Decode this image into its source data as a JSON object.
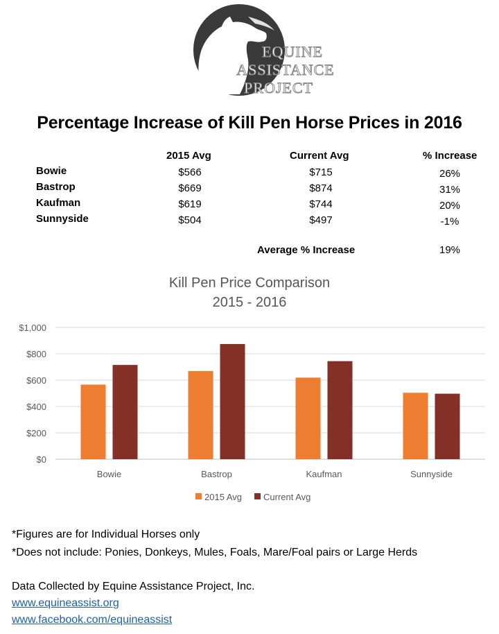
{
  "logo": {
    "text_lines": [
      "EQUINE",
      "ASSISTANCE",
      "PROJECT"
    ]
  },
  "title": "Percentage Increase of Kill Pen Horse Prices in 2016",
  "table": {
    "headers": [
      "2015 Avg",
      "Current Avg",
      "% Increase"
    ],
    "rows": [
      {
        "location": "Bowie",
        "avg2015": "$566",
        "current": "$715",
        "increase": "26%"
      },
      {
        "location": "Bastrop",
        "avg2015": "$669",
        "current": "$874",
        "increase": "31%"
      },
      {
        "location": "Kaufman",
        "avg2015": "$619",
        "current": "$744",
        "increase": "20%"
      },
      {
        "location": "Sunnyside",
        "avg2015": "$504",
        "current": "$497",
        "increase": "-1%"
      }
    ],
    "average_label": "Average % Increase",
    "average_value": "19%"
  },
  "chart_data": {
    "type": "bar",
    "title": "Kill Pen Price Comparison",
    "subtitle": "2015 - 2016",
    "categories": [
      "Bowie",
      "Bastrop",
      "Kaufman",
      "Sunnyside"
    ],
    "series": [
      {
        "name": "2015 Avg",
        "values": [
          566,
          669,
          619,
          504
        ],
        "color": "#ED7D31"
      },
      {
        "name": "Current Avg",
        "values": [
          715,
          874,
          744,
          497
        ],
        "color": "#843026"
      }
    ],
    "ylim": [
      0,
      1000
    ],
    "yticks": [
      0,
      200,
      400,
      600,
      800,
      1000
    ],
    "ytick_labels": [
      "$0",
      "$200",
      "$400",
      "$600",
      "$800",
      "$1,000"
    ],
    "grid": true,
    "legend": "bottom"
  },
  "notes": [
    "*Figures are for Individual Horses only",
    "*Does not include: Ponies, Donkeys, Mules, Foals,  Mare/Foal pairs or Large Herds"
  ],
  "credit": "Data Collected by Equine Assistance Project, Inc.",
  "links": [
    "www.equineassist.org",
    "www.facebook.com/equineassist"
  ]
}
